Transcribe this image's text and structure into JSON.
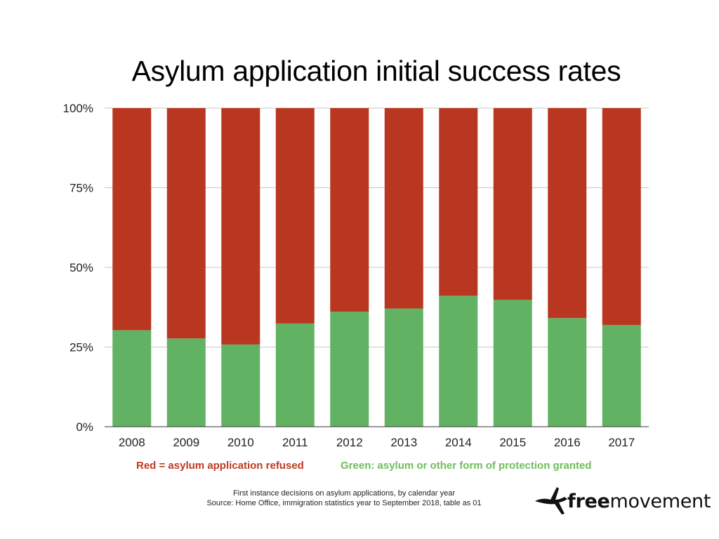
{
  "chart_data": {
    "type": "bar",
    "stacked": true,
    "percent": true,
    "title": "Asylum application initial success rates",
    "categories": [
      "2008",
      "2009",
      "2010",
      "2011",
      "2012",
      "2013",
      "2014",
      "2015",
      "2016",
      "2017"
    ],
    "series": [
      {
        "name": "Green: asylum or other form of protection granted",
        "color": "#62b264",
        "values": [
          30.3,
          27.7,
          25.8,
          32.4,
          36.1,
          37.1,
          41.1,
          39.8,
          34.1,
          31.9
        ]
      },
      {
        "name": "Red = asylum application refused",
        "color": "#b93720",
        "values": [
          69.7,
          72.3,
          74.2,
          67.6,
          63.9,
          62.9,
          58.9,
          60.2,
          65.9,
          68.1
        ]
      }
    ],
    "yticks": [
      "0%",
      "25%",
      "50%",
      "75%",
      "100%"
    ],
    "ylim": [
      0,
      100
    ],
    "grid": true,
    "xlabel": "",
    "ylabel": ""
  },
  "legend": {
    "red": "Red = asylum application refused",
    "green": "Green: asylum or other form of protection granted"
  },
  "footnote": {
    "line1": "First instance decisions on asylum applications, by calendar year",
    "line2": "Source: Home Office, immigration statistics year to September 2018, table as 01"
  },
  "logo": {
    "bold": "free",
    "regular": "movement"
  }
}
